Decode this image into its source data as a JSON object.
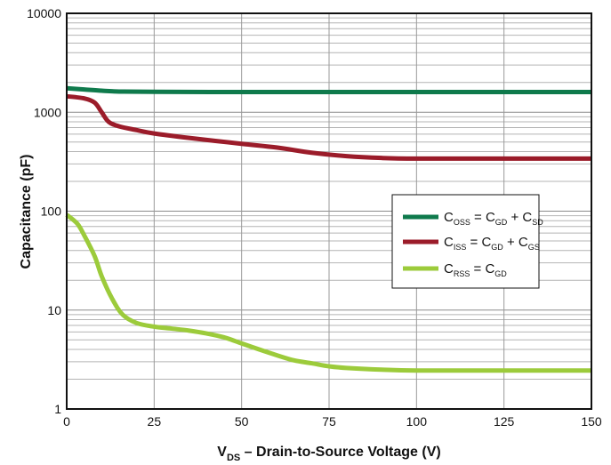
{
  "chart_data": {
    "type": "line",
    "xlabel": "V_DS – Drain-to-Source Voltage (V)",
    "xlabel_main": "V",
    "xlabel_sub": "DS",
    "xlabel_rest": " – Drain-to-Source Voltage (V)",
    "ylabel": "Capacitance (pF)",
    "y_scale": "log",
    "xlim": [
      0,
      150
    ],
    "ylim": [
      1,
      10000
    ],
    "x_ticks": [
      "0",
      "25",
      "50",
      "75",
      "100",
      "125",
      "150"
    ],
    "y_ticks": [
      "1",
      "10",
      "100",
      "1000",
      "10000"
    ],
    "grid": true,
    "legend_position": "right, middle",
    "series": [
      {
        "name": "C_OSS = C_GD + C_SD",
        "legend": [
          {
            "t": "C"
          },
          {
            "s": "OSS"
          },
          {
            "t": " = C"
          },
          {
            "s": "GD"
          },
          {
            "t": " + C"
          },
          {
            "s": "SD"
          }
        ],
        "color": "#0f7a4c",
        "x": [
          0,
          5,
          10,
          15,
          25,
          50,
          75,
          100,
          125,
          150
        ],
        "y": [
          1750,
          1700,
          1650,
          1620,
          1610,
          1600,
          1600,
          1600,
          1600,
          1600
        ]
      },
      {
        "name": "C_ISS = C_GD + C_GS",
        "legend": [
          {
            "t": "C"
          },
          {
            "s": "ISS"
          },
          {
            "t": " = C"
          },
          {
            "s": "GD"
          },
          {
            "t": " + C"
          },
          {
            "s": "GS"
          }
        ],
        "color": "#9b1c2a",
        "x": [
          0,
          5,
          8,
          10,
          12,
          15,
          20,
          25,
          35,
          50,
          60,
          70,
          80,
          90,
          100,
          125,
          150
        ],
        "y": [
          1450,
          1380,
          1250,
          1000,
          800,
          720,
          660,
          610,
          550,
          480,
          440,
          390,
          360,
          345,
          340,
          340,
          340
        ]
      },
      {
        "name": "C_RSS = C_GD",
        "legend": [
          {
            "t": "C"
          },
          {
            "s": "RSS"
          },
          {
            "t": " = C"
          },
          {
            "s": "GD"
          }
        ],
        "color": "#9ccb3b",
        "x": [
          0,
          3,
          5,
          8,
          10,
          13,
          16,
          20,
          25,
          30,
          35,
          40,
          45,
          50,
          55,
          60,
          65,
          70,
          75,
          80,
          90,
          100,
          125,
          150
        ],
        "y": [
          92,
          75,
          57,
          35,
          22,
          13,
          9.0,
          7.4,
          6.8,
          6.5,
          6.2,
          5.8,
          5.3,
          4.6,
          4.0,
          3.5,
          3.1,
          2.9,
          2.7,
          2.6,
          2.5,
          2.45,
          2.45,
          2.45
        ]
      }
    ]
  }
}
